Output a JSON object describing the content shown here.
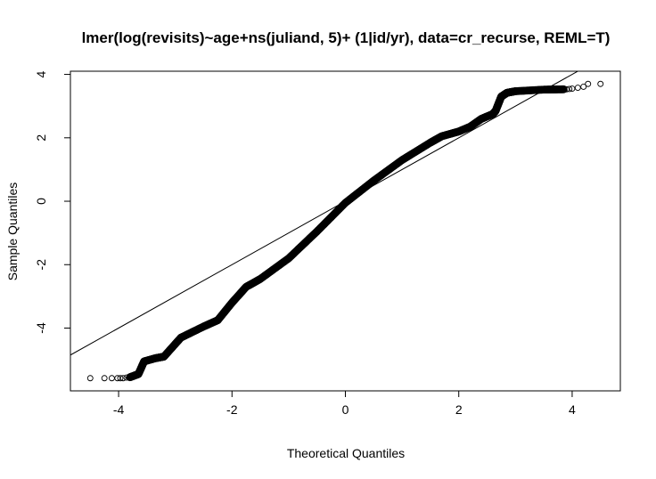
{
  "chart_data": {
    "type": "scatter",
    "title": "lmer(log(revisits)~age+ns(juliand, 5)+ (1|id/yr), data=cr_recurse, REML=T)",
    "xlabel": "Theoretical Quantiles",
    "ylabel": "Sample Quantiles",
    "xlim": [
      -4.85,
      4.85
    ],
    "ylim": [
      -5.98,
      4.1
    ],
    "xticks": [
      -4,
      -2,
      0,
      2,
      4
    ],
    "yticks": [
      -4,
      -2,
      0,
      2,
      4
    ],
    "grid": false,
    "legend": "none",
    "point_style": "open-circle",
    "colors": {
      "points": "#000000",
      "line": "#000000",
      "axes": "#000000"
    },
    "reference_line": {
      "intercept": 0.0,
      "slope": 1.0
    },
    "curve_anchors": [
      [
        -3.8,
        -5.55
      ],
      [
        -3.65,
        -5.45
      ],
      [
        -3.55,
        -5.05
      ],
      [
        -3.35,
        -4.95
      ],
      [
        -3.2,
        -4.9
      ],
      [
        -2.9,
        -4.3
      ],
      [
        -2.5,
        -3.95
      ],
      [
        -2.25,
        -3.75
      ],
      [
        -2.0,
        -3.2
      ],
      [
        -1.75,
        -2.7
      ],
      [
        -1.5,
        -2.45
      ],
      [
        -1.0,
        -1.8
      ],
      [
        -0.5,
        -0.95
      ],
      [
        0.0,
        -0.05
      ],
      [
        0.5,
        0.65
      ],
      [
        1.0,
        1.3
      ],
      [
        1.5,
        1.85
      ],
      [
        1.7,
        2.05
      ],
      [
        2.0,
        2.2
      ],
      [
        2.2,
        2.35
      ],
      [
        2.4,
        2.6
      ],
      [
        2.6,
        2.75
      ],
      [
        2.65,
        2.85
      ],
      [
        2.75,
        3.3
      ],
      [
        2.85,
        3.42
      ],
      [
        3.0,
        3.47
      ],
      [
        3.5,
        3.52
      ],
      [
        3.85,
        3.53
      ]
    ],
    "outliers": [
      [
        -4.5,
        -5.58
      ],
      [
        -4.25,
        -5.58
      ],
      [
        -4.12,
        -5.58
      ],
      [
        -4.02,
        -5.58
      ],
      [
        -3.97,
        -5.58
      ],
      [
        -3.92,
        -5.58
      ],
      [
        -3.86,
        -5.56
      ],
      [
        -3.7,
        -5.5
      ],
      [
        -3.62,
        -5.35
      ],
      [
        -3.58,
        -5.2
      ],
      [
        -3.55,
        -5.1
      ],
      [
        3.9,
        3.53
      ],
      [
        3.95,
        3.54
      ],
      [
        4.0,
        3.55
      ],
      [
        4.1,
        3.58
      ],
      [
        4.2,
        3.61
      ],
      [
        4.28,
        3.7
      ],
      [
        4.5,
        3.7
      ]
    ]
  }
}
